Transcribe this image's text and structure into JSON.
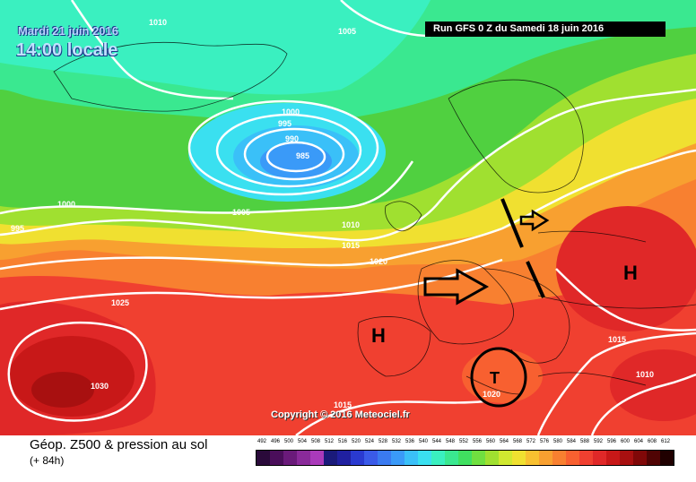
{
  "header": {
    "date": "Mardi 21 juin 2016",
    "time": "14:00 locale",
    "run": "Run GFS 0 Z du Samedi 18 juin 2016"
  },
  "copyright": "Copyright © 2016 Meteociel.fr",
  "legend": {
    "title": "Géop. Z500 & pression au sol",
    "subtitle": "(+ 84h)",
    "ticks": [
      "492",
      "496",
      "500",
      "504",
      "508",
      "512",
      "516",
      "520",
      "524",
      "528",
      "532",
      "536",
      "540",
      "544",
      "548",
      "552",
      "556",
      "560",
      "564",
      "568",
      "572",
      "576",
      "580",
      "584",
      "588",
      "592",
      "596",
      "600",
      "604",
      "608",
      "612"
    ],
    "colors": [
      "#2a0a3a",
      "#4a0e5a",
      "#6a1a7a",
      "#8a2a9a",
      "#aa3aba",
      "#1a1a7a",
      "#2020a0",
      "#2a3ad0",
      "#3a5ae8",
      "#3a7af0",
      "#3a9af8",
      "#3ac0f8",
      "#3ae0f0",
      "#3af0c0",
      "#3ae890",
      "#40e060",
      "#70e040",
      "#a0e030",
      "#d0e830",
      "#f0e030",
      "#f8c030",
      "#f8a030",
      "#f88030",
      "#f86030",
      "#f04030",
      "#e02828",
      "#c81818",
      "#a81010",
      "#800808",
      "#500404",
      "#200000"
    ]
  },
  "isobar_labels": [
    "1010",
    "1005",
    "1000",
    "995",
    "990",
    "985",
    "1005",
    "1000",
    "995",
    "1010",
    "1015",
    "1020",
    "1025",
    "1030",
    "1015",
    "1020",
    "1015",
    "1010"
  ],
  "pressure_centers": [
    "H",
    "H",
    "T"
  ],
  "colors": {
    "deep_red": "#cc1a1a",
    "red": "#ee3a2a",
    "orange": "#f89a30",
    "yellow": "#f0e030",
    "green": "#50d040",
    "cyan": "#40d8f0",
    "blue": "#3a80f8"
  }
}
